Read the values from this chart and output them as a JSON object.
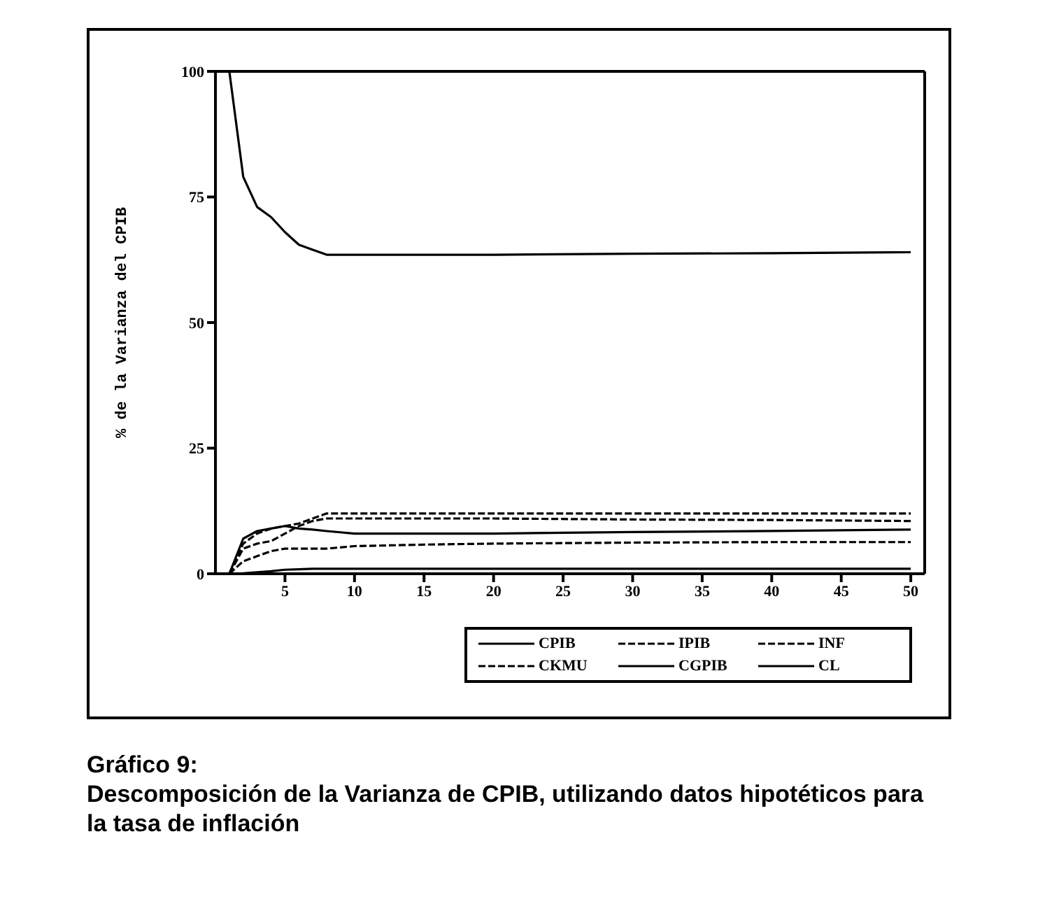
{
  "chart_data": {
    "type": "line",
    "title": "Gráfico 9:",
    "subtitle": "Descomposición de la Varianza de CPIB, utilizando datos hipotéticos para la tasa de inflación",
    "ylabel": "% de la Varianza del CPIB",
    "x": [
      1,
      2,
      3,
      4,
      5,
      6,
      7,
      8,
      10,
      15,
      20,
      30,
      40,
      50
    ],
    "series": [
      {
        "name": "CPIB",
        "color": "#000000",
        "line_style": "solid",
        "values": [
          100,
          79,
          73,
          71,
          68,
          65.5,
          64.5,
          63.5,
          63.5,
          63.5,
          63.5,
          63.7,
          63.8,
          64
        ]
      },
      {
        "name": "IPIB",
        "color": "#000000",
        "line_style": "dashed",
        "values": [
          0,
          6,
          8,
          9,
          9.5,
          10,
          11,
          12,
          12,
          12,
          12,
          12,
          12,
          12
        ]
      },
      {
        "name": "INF",
        "color": "#000000",
        "line_style": "dashed",
        "values": [
          0,
          5,
          6,
          6.5,
          8,
          9.5,
          10.5,
          11,
          11,
          11,
          11,
          10.8,
          10.7,
          10.5
        ]
      },
      {
        "name": "CKMU",
        "color": "#000000",
        "line_style": "dashed",
        "values": [
          0,
          2.5,
          3.5,
          4.5,
          5,
          5,
          5,
          5,
          5.5,
          5.8,
          6,
          6.2,
          6.3,
          6.3
        ]
      },
      {
        "name": "CGPIB",
        "color": "#000000",
        "line_style": "solid",
        "values": [
          0,
          7,
          8.5,
          9,
          9.5,
          9,
          8.8,
          8.5,
          8,
          8,
          8,
          8.3,
          8.5,
          8.8
        ]
      },
      {
        "name": "CL",
        "color": "#000000",
        "line_style": "solid",
        "values": [
          0,
          0.1,
          0.3,
          0.5,
          0.8,
          0.9,
          1,
          1,
          1,
          1,
          1,
          1,
          1,
          1
        ]
      }
    ],
    "xlim": [
      0,
      51
    ],
    "xticks": [
      5,
      10,
      15,
      20,
      25,
      30,
      35,
      40,
      45,
      50
    ],
    "ylim": [
      0,
      100
    ],
    "yticks": [
      0,
      25,
      50,
      75,
      100
    ],
    "grid": false,
    "legend": "bottom right",
    "marker": "none"
  }
}
